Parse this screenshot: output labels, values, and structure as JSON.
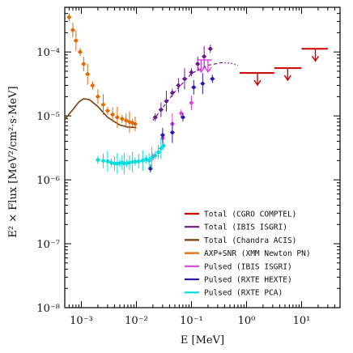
{
  "chart_data": {
    "type": "scatter",
    "xlabel": "E [MeV]",
    "ylabel": "E² × Flux [MeV²/cm²·s·MeV]",
    "xscale": "log",
    "yscale": "log",
    "xlim": [
      0.0005,
      50
    ],
    "ylim": [
      1e-08,
      0.0005
    ],
    "x_tick_labels": [
      "10⁻³",
      "10⁻²",
      "10⁻¹",
      "10⁰",
      "10¹"
    ],
    "x_tick_values": [
      0.001,
      0.01,
      0.1,
      1,
      10
    ],
    "y_tick_labels": [
      "10⁻⁸",
      "10⁻⁷",
      "10⁻⁶",
      "10⁻⁵",
      "10⁻⁴"
    ],
    "y_tick_values": [
      1e-08,
      1e-07,
      1e-06,
      1e-05,
      0.0001
    ],
    "grid": false,
    "legend_position": "bottom-right",
    "series": [
      {
        "name": "Total (CGRO COMPTEL)",
        "color": "#cc0000",
        "style": "upper-limits",
        "x": [
          1.58,
          5.6,
          17.8
        ],
        "xlo": [
          0.75,
          3.2,
          10
        ],
        "xhi": [
          3.2,
          10,
          30
        ],
        "y": [
          4.7e-05,
          5.6e-05,
          0.000112
        ]
      },
      {
        "name": "Total (IBIS ISGRI)",
        "color": "#6a1a8a",
        "style": "points",
        "x": [
          0.022,
          0.028,
          0.035,
          0.045,
          0.058,
          0.075,
          0.1,
          0.13,
          0.17,
          0.22
        ],
        "y": [
          9.5e-06,
          1.25e-05,
          1.7e-05,
          2.3e-05,
          3e-05,
          3.8e-05,
          4.8e-05,
          6.5e-05,
          8.5e-05,
          0.000112
        ],
        "fit_x": [
          0.02,
          0.05,
          0.1,
          0.2,
          0.35
        ],
        "fit_y": [
          8.5e-06,
          2.4e-05,
          4.6e-05,
          6.2e-05,
          6.8e-05
        ]
      },
      {
        "name": "Total (Chandra ACIS)",
        "color": "#7a3a10",
        "style": "curve",
        "x": [
          0.0005,
          0.0007,
          0.0009,
          0.0011,
          0.0014,
          0.002,
          0.003,
          0.005,
          0.007,
          0.01
        ],
        "y": [
          8.8e-06,
          1.25e-05,
          1.65e-05,
          1.85e-05,
          1.8e-05,
          1.4e-05,
          9.5e-06,
          7.2e-06,
          6.7e-06,
          6.6e-06
        ]
      },
      {
        "name": "AXP+SNR (XMM Newton PN)",
        "color": "#e06a00",
        "style": "points",
        "x": [
          0.0006,
          0.0007,
          0.0008,
          0.00095,
          0.0011,
          0.0013,
          0.0016,
          0.002,
          0.0025,
          0.003,
          0.0037,
          0.0045,
          0.0055,
          0.0065,
          0.0075,
          0.0085,
          0.0095
        ],
        "y": [
          0.00035,
          0.00022,
          0.00015,
          0.0001,
          6.5e-05,
          4.5e-05,
          3e-05,
          2e-05,
          1.5e-05,
          1.2e-05,
          1.05e-05,
          9.5e-06,
          9e-06,
          8.5e-06,
          8e-06,
          7.8e-06,
          7.5e-06
        ]
      },
      {
        "name": "Pulsed (IBIS ISGRI)",
        "color": "#e040e0",
        "style": "points",
        "x": [
          0.02,
          0.03,
          0.045,
          0.065,
          0.1,
          0.15,
          0.2
        ],
        "y": [
          2.3e-06,
          4.5e-06,
          7.5e-06,
          1.1e-05,
          1.6e-05,
          7.5e-05,
          7.5e-05
        ],
        "upper_limits": [
          false,
          false,
          false,
          false,
          false,
          true,
          true
        ]
      },
      {
        "name": "Pulsed (RXTE HEXTE)",
        "color": "#2a1aa8",
        "style": "points",
        "x": [
          0.018,
          0.03,
          0.045,
          0.07,
          0.11,
          0.16,
          0.24
        ],
        "y": [
          1.5e-06,
          5e-06,
          5.5e-06,
          9.5e-06,
          2.8e-05,
          3.2e-05,
          3.8e-05
        ]
      },
      {
        "name": "Pulsed (RXTE PCA)",
        "color": "#00dede",
        "style": "points",
        "x": [
          0.002,
          0.0025,
          0.003,
          0.0035,
          0.004,
          0.0045,
          0.005,
          0.0055,
          0.006,
          0.0067,
          0.0075,
          0.0085,
          0.0095,
          0.011,
          0.013,
          0.015,
          0.017,
          0.019,
          0.022,
          0.025,
          0.028,
          0.031
        ],
        "y": [
          2.05e-06,
          1.98e-06,
          1.95e-06,
          1.85e-06,
          1.8e-06,
          1.8e-06,
          1.82e-06,
          1.86e-06,
          1.8e-06,
          1.82e-06,
          1.85e-06,
          1.9e-06,
          1.92e-06,
          1.95e-06,
          2e-06,
          2.1e-06,
          2e-06,
          2.2e-06,
          2.4e-06,
          2.7e-06,
          3.1e-06,
          3.4e-06
        ]
      }
    ]
  }
}
